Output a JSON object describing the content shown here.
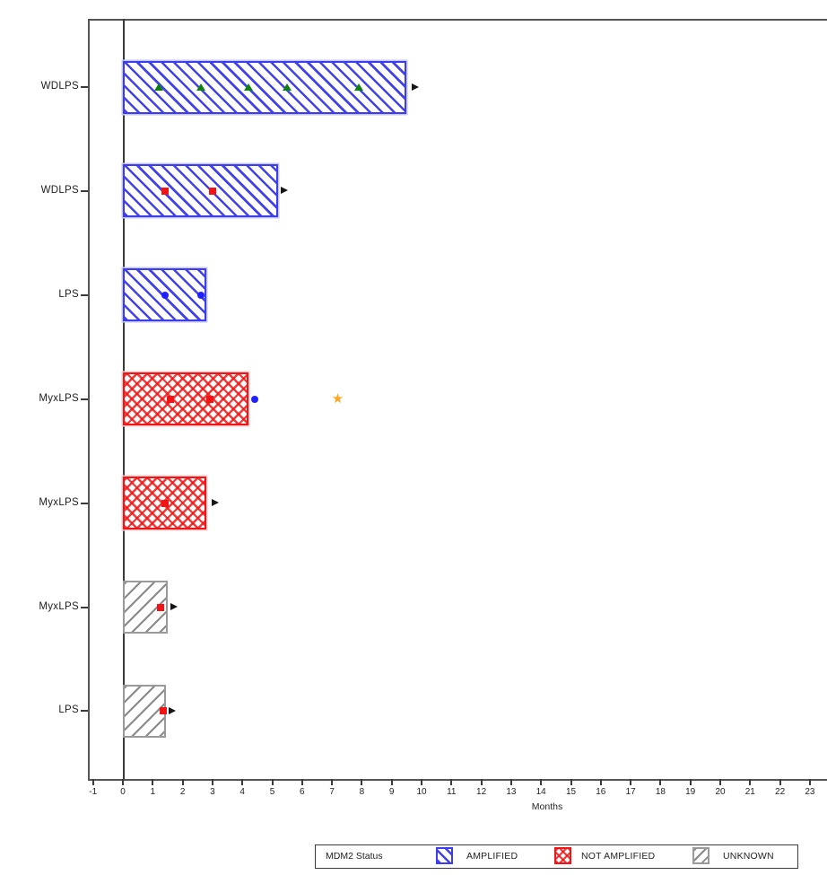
{
  "chart_data": {
    "type": "bar",
    "subtype": "swimmer-plot",
    "title": "",
    "xlabel": "Months",
    "ylabel": "",
    "xlim": [
      -1,
      23.6
    ],
    "x_ticks": [
      -1,
      0,
      1,
      2,
      3,
      4,
      5,
      6,
      7,
      8,
      9,
      10,
      11,
      12,
      13,
      14,
      15,
      16,
      17,
      18,
      19,
      20,
      21,
      22,
      23
    ],
    "grid": false,
    "legend": {
      "title": "MDM2 Status",
      "position": "bottom",
      "entries": [
        {
          "label": "AMPLIFIED",
          "pattern": "diagonal-down-hatch",
          "color": "#3d3df0"
        },
        {
          "label": "NOT AMPLIFIED",
          "pattern": "cross-hatch",
          "color": "#f21414"
        },
        {
          "label": "UNKNOWN",
          "pattern": "diagonal-up-hatch",
          "color": "#9a9a9a"
        }
      ]
    },
    "marker_colors": {
      "triangle": "#0c820c",
      "square": "#f21414",
      "circle": "#1f1fff",
      "star": "#ffa51e",
      "arrow": "#151515"
    },
    "rows": [
      {
        "label": "WDLPS",
        "mdm2_status": "AMPLIFIED",
        "bar_end_months": 9.5,
        "ongoing_arrow_months": 9.8,
        "markers": [
          {
            "shape": "triangle",
            "x": 1.2
          },
          {
            "shape": "triangle",
            "x": 2.6
          },
          {
            "shape": "triangle",
            "x": 4.2
          },
          {
            "shape": "triangle",
            "x": 5.5
          },
          {
            "shape": "triangle",
            "x": 7.9
          }
        ]
      },
      {
        "label": "WDLPS",
        "mdm2_status": "AMPLIFIED",
        "bar_end_months": 5.2,
        "ongoing_arrow_months": 5.4,
        "markers": [
          {
            "shape": "square",
            "x": 1.4
          },
          {
            "shape": "square",
            "x": 3.0
          }
        ]
      },
      {
        "label": "LPS",
        "mdm2_status": "AMPLIFIED",
        "bar_end_months": 2.8,
        "ongoing_arrow_months": null,
        "markers": [
          {
            "shape": "circle",
            "x": 1.4
          },
          {
            "shape": "circle",
            "x": 2.6
          }
        ]
      },
      {
        "label": "MyxLPS",
        "mdm2_status": "NOT AMPLIFIED",
        "bar_end_months": 4.2,
        "ongoing_arrow_months": null,
        "markers": [
          {
            "shape": "square",
            "x": 1.6
          },
          {
            "shape": "square",
            "x": 2.9
          },
          {
            "shape": "circle",
            "x": 4.4
          },
          {
            "shape": "star",
            "x": 7.2
          }
        ]
      },
      {
        "label": "MyxLPS",
        "mdm2_status": "NOT AMPLIFIED",
        "bar_end_months": 2.8,
        "ongoing_arrow_months": 3.1,
        "markers": [
          {
            "shape": "square",
            "x": 1.4
          }
        ]
      },
      {
        "label": "MyxLPS",
        "mdm2_status": "UNKNOWN",
        "bar_end_months": 1.5,
        "ongoing_arrow_months": 1.7,
        "markers": [
          {
            "shape": "square",
            "x": 1.25
          }
        ]
      },
      {
        "label": "LPS",
        "mdm2_status": "UNKNOWN",
        "bar_end_months": 1.45,
        "ongoing_arrow_months": 1.65,
        "markers": [
          {
            "shape": "square",
            "x": 1.35
          }
        ]
      }
    ]
  }
}
